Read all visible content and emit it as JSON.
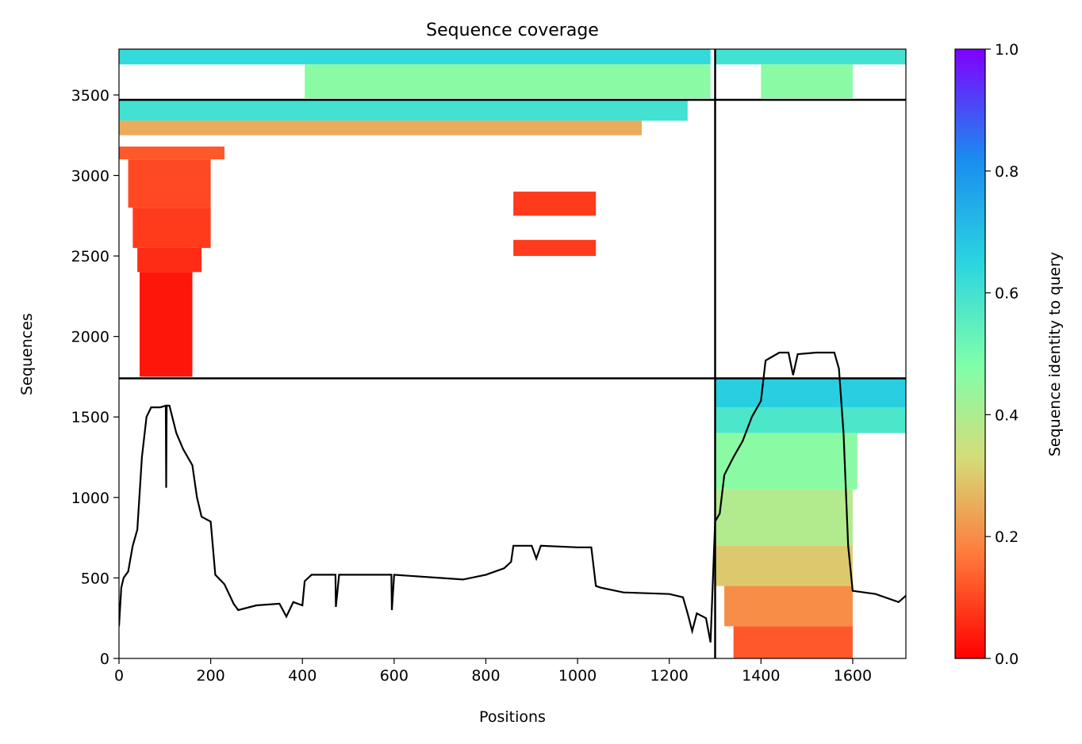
{
  "chart_data": {
    "type": "heatmap",
    "title": "Sequence coverage",
    "xlabel": "Positions",
    "ylabel": "Sequences",
    "xlim": [
      0,
      1716
    ],
    "ylim": [
      0,
      3785
    ],
    "grid": false,
    "x_ticks": [
      0,
      200,
      400,
      600,
      800,
      1000,
      1200,
      1400,
      1600
    ],
    "y_ticks": [
      0,
      500,
      1000,
      1500,
      2000,
      2500,
      3000,
      3500
    ],
    "domain_boundaries_x": [
      1300
    ],
    "domain_boundaries_y": [
      1740,
      3470
    ],
    "colorbar": {
      "label": "Sequence identity to query",
      "range": [
        0,
        1
      ],
      "ticks": [
        "0.0",
        "0.2",
        "0.4",
        "0.6",
        "0.8",
        "1.0"
      ],
      "colormap": "rainbow_r",
      "stops": [
        "#ff0000",
        "#ff7a3a",
        "#d4dd7a",
        "#80ffaa",
        "#2ad5e0",
        "#1a8cf0",
        "#7f00ff"
      ]
    },
    "coverage_blocks": [
      {
        "x": [
          0,
          1290
        ],
        "y": [
          3690,
          3785
        ],
        "identity": 0.65
      },
      {
        "x": [
          405,
          1290
        ],
        "y": [
          3480,
          3690
        ],
        "identity": 0.48
      },
      {
        "x": [
          1300,
          1716
        ],
        "y": [
          3690,
          3785
        ],
        "identity": 0.62
      },
      {
        "x": [
          1400,
          1600
        ],
        "y": [
          3480,
          3690
        ],
        "identity": 0.48
      },
      {
        "x": [
          0,
          1240
        ],
        "y": [
          3340,
          3470
        ],
        "identity": 0.62
      },
      {
        "x": [
          0,
          1140
        ],
        "y": [
          3250,
          3340
        ],
        "identity": 0.25
      },
      {
        "x": [
          0,
          230
        ],
        "y": [
          3100,
          3180
        ],
        "identity": 0.12
      },
      {
        "x": [
          20,
          200
        ],
        "y": [
          2800,
          3100
        ],
        "identity": 0.1
      },
      {
        "x": [
          30,
          200
        ],
        "y": [
          2550,
          2800
        ],
        "identity": 0.08
      },
      {
        "x": [
          40,
          180
        ],
        "y": [
          2400,
          2550
        ],
        "identity": 0.06
      },
      {
        "x": [
          45,
          160
        ],
        "y": [
          1750,
          2400
        ],
        "identity": 0.03
      },
      {
        "x": [
          860,
          1040
        ],
        "y": [
          2750,
          2900
        ],
        "identity": 0.08
      },
      {
        "x": [
          860,
          1040
        ],
        "y": [
          2500,
          2600
        ],
        "identity": 0.08
      },
      {
        "x": [
          1300,
          1716
        ],
        "y": [
          1560,
          1740
        ],
        "identity": 0.68
      },
      {
        "x": [
          1300,
          1716
        ],
        "y": [
          1400,
          1560
        ],
        "identity": 0.6
      },
      {
        "x": [
          1300,
          1610
        ],
        "y": [
          1050,
          1400
        ],
        "identity": 0.48
      },
      {
        "x": [
          1300,
          1600
        ],
        "y": [
          700,
          1050
        ],
        "identity": 0.4
      },
      {
        "x": [
          1300,
          1600
        ],
        "y": [
          450,
          700
        ],
        "identity": 0.3
      },
      {
        "x": [
          1320,
          1600
        ],
        "y": [
          200,
          450
        ],
        "identity": 0.2
      },
      {
        "x": [
          1340,
          1600
        ],
        "y": [
          0,
          200
        ],
        "identity": 0.12
      }
    ],
    "coverage_line": {
      "x": [
        0,
        5,
        10,
        20,
        30,
        40,
        50,
        60,
        70,
        80,
        90,
        102,
        103,
        104,
        110,
        125,
        140,
        160,
        170,
        180,
        200,
        210,
        230,
        250,
        260,
        300,
        350,
        365,
        380,
        400,
        405,
        420,
        450,
        472,
        473,
        480,
        550,
        594,
        595,
        600,
        700,
        750,
        800,
        840,
        855,
        860,
        900,
        910,
        920,
        1000,
        1030,
        1040,
        1050,
        1100,
        1200,
        1230,
        1240,
        1250,
        1260,
        1280,
        1290,
        1300,
        1310,
        1320,
        1340,
        1360,
        1380,
        1400,
        1410,
        1440,
        1460,
        1470,
        1480,
        1520,
        1560,
        1570,
        1580,
        1590,
        1600,
        1650,
        1700,
        1716
      ],
      "y": [
        200,
        440,
        500,
        540,
        700,
        800,
        1250,
        1500,
        1560,
        1560,
        1560,
        1570,
        1060,
        1570,
        1570,
        1400,
        1300,
        1200,
        1000,
        880,
        850,
        520,
        460,
        340,
        300,
        330,
        340,
        260,
        350,
        330,
        480,
        520,
        520,
        520,
        320,
        520,
        520,
        520,
        300,
        520,
        500,
        490,
        520,
        560,
        600,
        700,
        700,
        620,
        700,
        690,
        690,
        450,
        440,
        410,
        400,
        380,
        280,
        170,
        280,
        250,
        100,
        850,
        900,
        1140,
        1250,
        1350,
        1500,
        1600,
        1850,
        1900,
        1900,
        1760,
        1890,
        1900,
        1900,
        1800,
        1400,
        700,
        420,
        400,
        350,
        390
      ]
    }
  }
}
